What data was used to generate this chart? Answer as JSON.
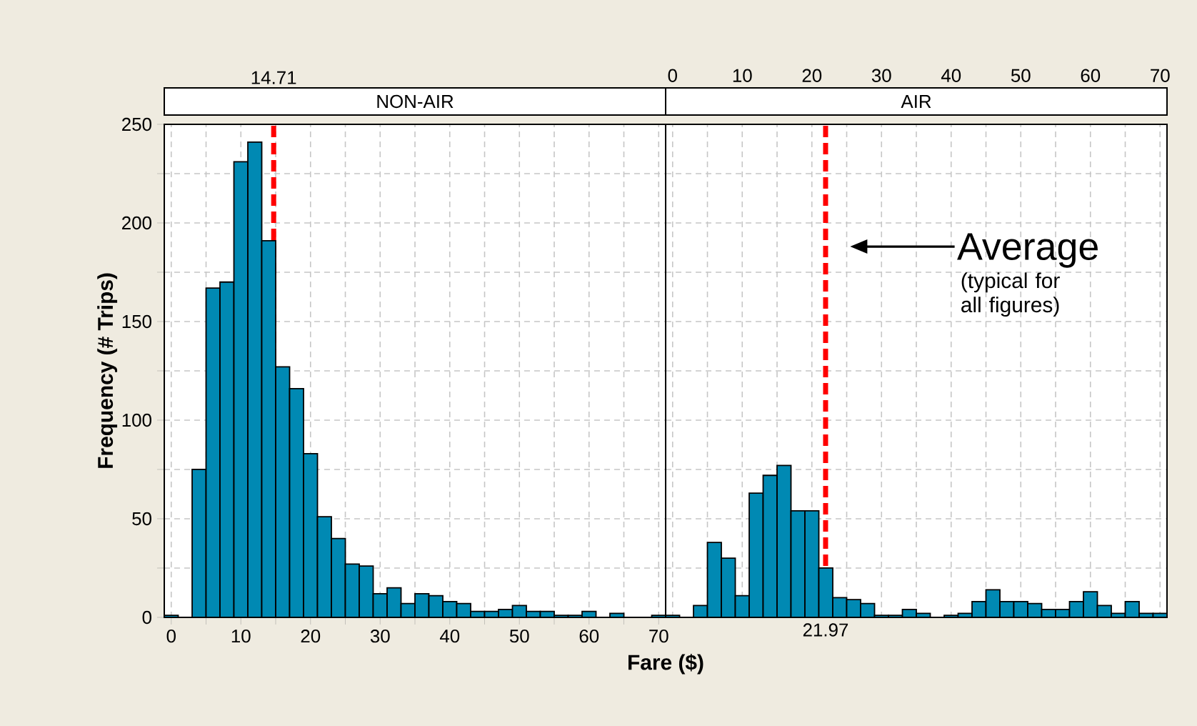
{
  "chart_data": [
    {
      "type": "histogram",
      "title": "NON-AIR",
      "xlabel": "Fare ($)",
      "ylabel": "Frequency (# Trips)",
      "color": "#0089b3",
      "grid": true,
      "bins": [
        -1,
        1,
        3,
        5,
        7,
        9,
        11,
        13,
        15,
        17,
        19,
        21,
        23,
        25,
        27,
        29,
        31,
        33,
        35,
        37,
        39,
        41,
        43,
        45,
        47,
        49,
        51,
        53,
        55,
        57,
        59,
        61,
        63,
        65,
        67,
        69,
        71
      ],
      "values": [
        1,
        0,
        75,
        167,
        170,
        231,
        241,
        191,
        127,
        116,
        83,
        51,
        40,
        27,
        26,
        12,
        15,
        7,
        12,
        11,
        8,
        7,
        3,
        3,
        4,
        6,
        3,
        3,
        1,
        1,
        3,
        0,
        2,
        0,
        0,
        1
      ],
      "xlim": [
        -1,
        71
      ],
      "xticks": [
        0,
        {
          "value": 5,
          "label": null
        },
        10,
        {
          "value": 15,
          "label": null
        },
        20,
        {
          "value": 25,
          "label": null
        },
        30,
        {
          "value": 35,
          "label": null
        },
        40,
        {
          "value": 45,
          "label": null
        },
        50,
        {
          "value": 55,
          "label": null
        },
        60,
        {
          "value": 65,
          "label": null
        },
        70
      ],
      "ylim": [
        0,
        250
      ],
      "yticks": [
        0,
        {
          "value": 25,
          "label": null
        },
        50,
        {
          "value": 75,
          "label": null
        },
        100,
        {
          "value": 125,
          "label": null
        },
        150,
        {
          "value": 175,
          "label": null
        },
        200,
        {
          "value": 225,
          "label": null
        },
        250
      ],
      "ref_lines": [
        {
          "axis": "x",
          "value": 14.71,
          "label": "14.71",
          "color": "#ff0000",
          "line_style": "dashed"
        }
      ]
    },
    {
      "type": "histogram",
      "title": "AIR",
      "color": "#0089b3",
      "grid": true,
      "tick_labels": "x",
      "bins": [
        -1,
        1,
        3,
        5,
        7,
        9,
        11,
        13,
        15,
        17,
        19,
        21,
        23,
        25,
        27,
        29,
        31,
        33,
        35,
        37,
        39,
        41,
        43,
        45,
        47,
        49,
        51,
        53,
        55,
        57,
        59,
        61,
        63,
        65,
        67,
        69,
        71
      ],
      "values": [
        1,
        0,
        6,
        38,
        30,
        11,
        63,
        72,
        77,
        54,
        54,
        25,
        10,
        9,
        7,
        1,
        1,
        4,
        2,
        0,
        1,
        2,
        8,
        14,
        8,
        8,
        7,
        4,
        4,
        8,
        13,
        6,
        2,
        8,
        2,
        2
      ],
      "xlim": [
        -1,
        71
      ],
      "x2lim": [
        -1,
        71
      ],
      "x2ticks": [
        0,
        {
          "value": 5,
          "label": null
        },
        10,
        {
          "value": 15,
          "label": null
        },
        20,
        {
          "value": 25,
          "label": null
        },
        30,
        {
          "value": 35,
          "label": null
        },
        40,
        {
          "value": 45,
          "label": null
        },
        50,
        {
          "value": 55,
          "label": null
        },
        60,
        {
          "value": 65,
          "label": null
        },
        70
      ],
      "ylim": [
        0,
        250
      ],
      "yticks": [
        0,
        {
          "value": 25,
          "label": null
        },
        50,
        {
          "value": 75,
          "label": null
        },
        100,
        {
          "value": 125,
          "label": null
        },
        150,
        {
          "value": 175,
          "label": null
        },
        200,
        {
          "value": 225,
          "label": null
        },
        250
      ],
      "ref_lines": [
        {
          "axis": "x",
          "value": 21.97,
          "label": "21.97",
          "color": "#ff0000",
          "line_style": "dashed"
        }
      ],
      "annotations": [
        "Average",
        "(typical for all figures)"
      ]
    }
  ]
}
